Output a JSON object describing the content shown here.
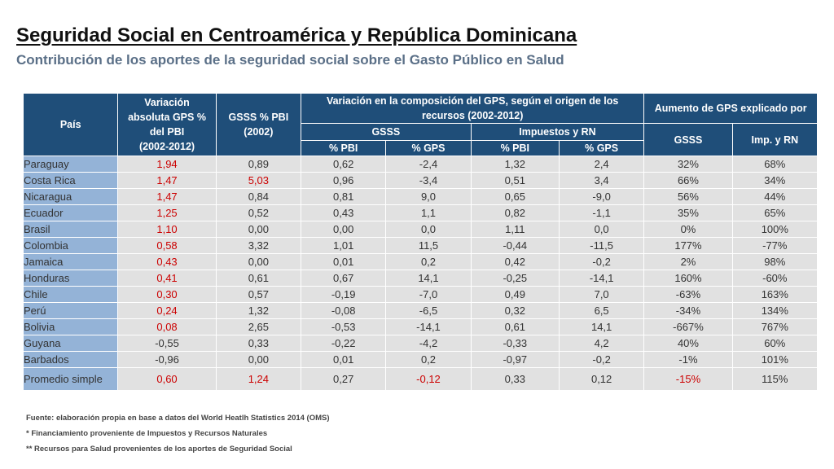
{
  "title": "Seguridad Social en Centroamérica y República Dominicana",
  "subtitle": "Contribución de los aportes de la seguridad social sobre el Gasto Público en Salud",
  "table": {
    "headers": {
      "pais": "País",
      "variacion_l1": "Variación",
      "variacion_l2": "absoluta GPS %",
      "variacion_l3": "del PBI",
      "variacion_l4": "(2002-2012)",
      "gsss_l1": "GSSS % PBI",
      "gsss_l2": "(2002)",
      "composicion": "Variación en la composición del GPS, según el origen de los recursos (2002-2012)",
      "aumento": "Aumento de GPS explicado por",
      "sub_gsss": "GSSS",
      "sub_impuestos": "Impuestos y  RN",
      "aum_gsss": "GSSS",
      "aum_imp": "Imp. y  RN",
      "pct_pbi_1": "% PBI",
      "pct_gps_1": "% GPS",
      "pct_pbi_2": "% PBI",
      "pct_gps_2": "% GPS"
    },
    "rows": [
      {
        "pais": "Paraguay",
        "variacion": "1,94",
        "gsss_pbi": "0,89",
        "gsss_pct_pbi": "0,62",
        "gsss_pct_gps": "-2,4",
        "imp_pct_pbi": "1,32",
        "imp_pct_gps": "2,4",
        "aum_gsss": "32%",
        "aum_imp": "68%"
      },
      {
        "pais": "Costa Rica",
        "variacion": "1,47",
        "gsss_pbi": "5,03",
        "gsss_pct_pbi": "0,96",
        "gsss_pct_gps": "-3,4",
        "imp_pct_pbi": "0,51",
        "imp_pct_gps": "3,4",
        "aum_gsss": "66%",
        "aum_imp": "34%"
      },
      {
        "pais": "Nicaragua",
        "variacion": "1,47",
        "gsss_pbi": "0,84",
        "gsss_pct_pbi": "0,81",
        "gsss_pct_gps": "9,0",
        "imp_pct_pbi": "0,65",
        "imp_pct_gps": "-9,0",
        "aum_gsss": "56%",
        "aum_imp": "44%"
      },
      {
        "pais": "Ecuador",
        "variacion": "1,25",
        "gsss_pbi": "0,52",
        "gsss_pct_pbi": "0,43",
        "gsss_pct_gps": "1,1",
        "imp_pct_pbi": "0,82",
        "imp_pct_gps": "-1,1",
        "aum_gsss": "35%",
        "aum_imp": "65%"
      },
      {
        "pais": "Brasil",
        "variacion": "1,10",
        "gsss_pbi": "0,00",
        "gsss_pct_pbi": "0,00",
        "gsss_pct_gps": "0,0",
        "imp_pct_pbi": "1,11",
        "imp_pct_gps": "0,0",
        "aum_gsss": "0%",
        "aum_imp": "100%"
      },
      {
        "pais": "Colombia",
        "variacion": "0,58",
        "gsss_pbi": "3,32",
        "gsss_pct_pbi": "1,01",
        "gsss_pct_gps": "11,5",
        "imp_pct_pbi": "-0,44",
        "imp_pct_gps": "-11,5",
        "aum_gsss": "177%",
        "aum_imp": "-77%"
      },
      {
        "pais": "Jamaica",
        "variacion": "0,43",
        "gsss_pbi": "0,00",
        "gsss_pct_pbi": "0,01",
        "gsss_pct_gps": "0,2",
        "imp_pct_pbi": "0,42",
        "imp_pct_gps": "-0,2",
        "aum_gsss": "2%",
        "aum_imp": "98%"
      },
      {
        "pais": "Honduras",
        "variacion": "0,41",
        "gsss_pbi": "0,61",
        "gsss_pct_pbi": "0,67",
        "gsss_pct_gps": "14,1",
        "imp_pct_pbi": "-0,25",
        "imp_pct_gps": "-14,1",
        "aum_gsss": "160%",
        "aum_imp": "-60%"
      },
      {
        "pais": "Chile",
        "variacion": "0,30",
        "gsss_pbi": "0,57",
        "gsss_pct_pbi": "-0,19",
        "gsss_pct_gps": "-7,0",
        "imp_pct_pbi": "0,49",
        "imp_pct_gps": "7,0",
        "aum_gsss": "-63%",
        "aum_imp": "163%"
      },
      {
        "pais": "Perú",
        "variacion": "0,24",
        "gsss_pbi": "1,32",
        "gsss_pct_pbi": "-0,08",
        "gsss_pct_gps": "-6,5",
        "imp_pct_pbi": "0,32",
        "imp_pct_gps": "6,5",
        "aum_gsss": "-34%",
        "aum_imp": "134%"
      },
      {
        "pais": "Bolivia",
        "variacion": "0,08",
        "gsss_pbi": "2,65",
        "gsss_pct_pbi": "-0,53",
        "gsss_pct_gps": "-14,1",
        "imp_pct_pbi": "0,61",
        "imp_pct_gps": "14,1",
        "aum_gsss": "-667%",
        "aum_imp": "767%"
      },
      {
        "pais": "Guyana",
        "variacion": "-0,55",
        "gsss_pbi": "0,33",
        "gsss_pct_pbi": "-0,22",
        "gsss_pct_gps": "-4,2",
        "imp_pct_pbi": "-0,33",
        "imp_pct_gps": "4,2",
        "aum_gsss": "40%",
        "aum_imp": "60%"
      },
      {
        "pais": "Barbados",
        "variacion": "-0,96",
        "gsss_pbi": "0,00",
        "gsss_pct_pbi": "0,01",
        "gsss_pct_gps": "0,2",
        "imp_pct_pbi": "-0,97",
        "imp_pct_gps": "-0,2",
        "aum_gsss": "-1%",
        "aum_imp": "101%"
      }
    ],
    "average": {
      "pais": "Promedio simple",
      "variacion": "0,60",
      "gsss_pbi": "1,24",
      "gsss_pct_pbi": "0,27",
      "gsss_pct_gps": "-0,12",
      "imp_pct_pbi": "0,33",
      "imp_pct_gps": "0,12",
      "aum_gsss": "-15%",
      "aum_imp": "115%"
    }
  },
  "notes": {
    "fuente": "Fuente: elaboración propia en base a datos del World Heatlh Statistics 2014 (OMS)",
    "note1": "* Financiamiento proveniente de Impuestos y Recursos Naturales",
    "note2": "** Recursos para Salud provenientes de los aportes de Seguridad Social"
  },
  "colors": {
    "header_bg": "#1f4e79",
    "country_bg": "#94b3d7",
    "cell_bg": "#e1e1e1",
    "highlight_red": "#cc0000"
  }
}
